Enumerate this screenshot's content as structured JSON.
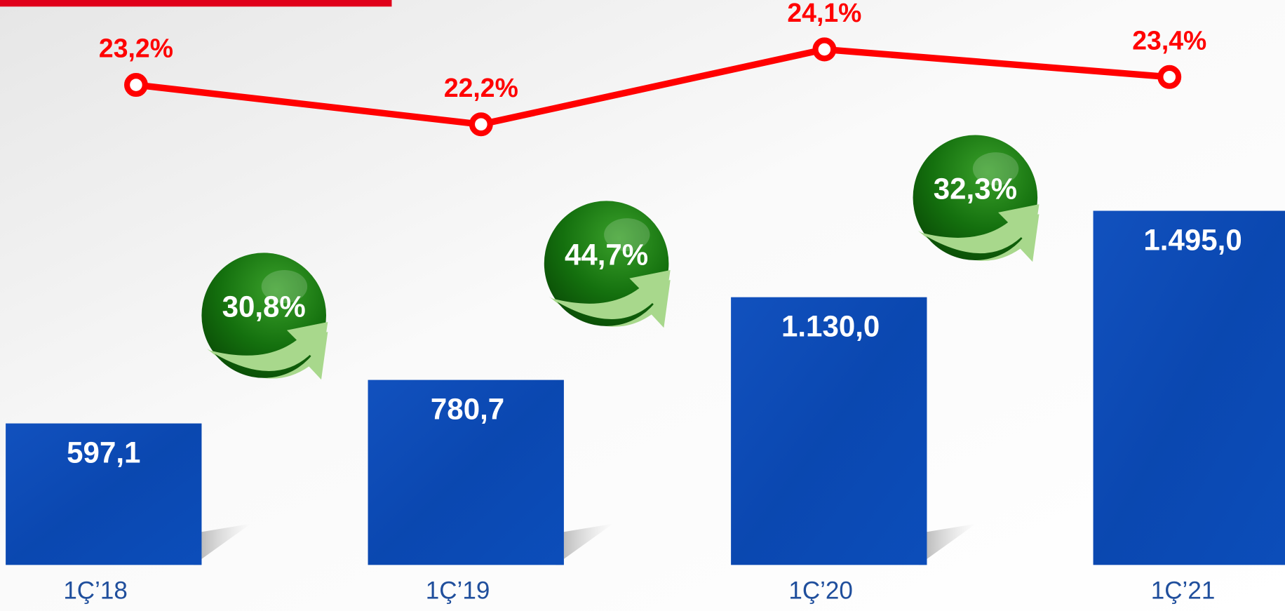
{
  "chart_data": {
    "type": "bar",
    "categories": [
      "1Ç’18",
      "1Ç’19",
      "1Ç’20",
      "1Ç’21"
    ],
    "values": [
      597.1,
      780.7,
      1130.0,
      1495.0
    ],
    "value_labels": [
      "597,1",
      "780,7",
      "1.130,0",
      "1.495,0"
    ],
    "color": "#0b4bb5",
    "line": {
      "values": [
        23.2,
        22.2,
        24.1,
        23.4
      ],
      "value_labels": [
        "23,2%",
        "22,2%",
        "24,1%",
        "23,4%"
      ],
      "color": "#ff0000"
    },
    "growth": {
      "values": [
        30.8,
        44.7,
        32.3
      ],
      "value_labels": [
        "30,8%",
        "44,7%",
        "32,3%"
      ],
      "color": "#1b7a12"
    }
  }
}
